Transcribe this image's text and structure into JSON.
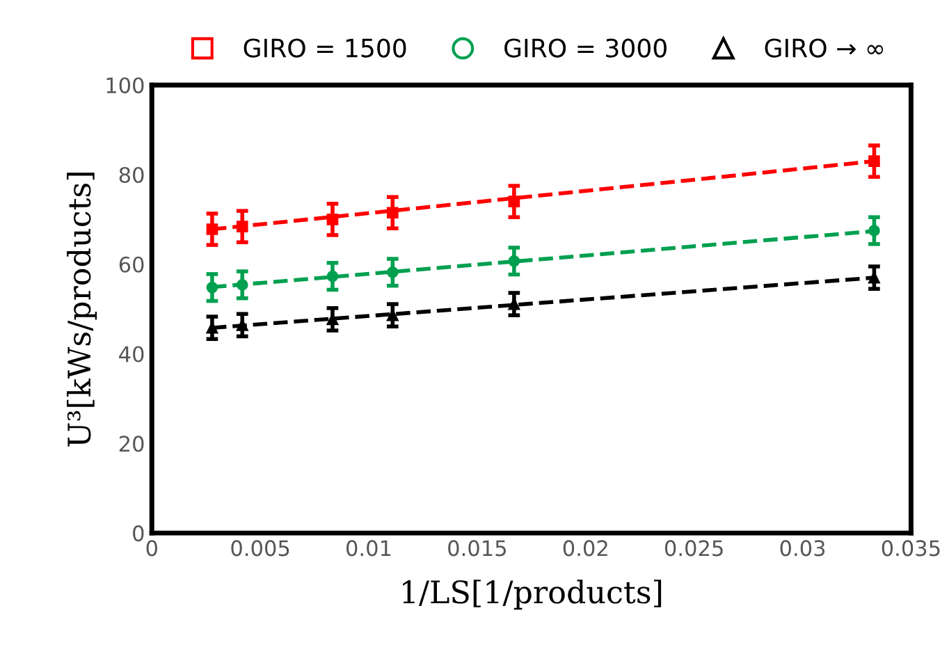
{
  "chart_data": {
    "type": "scatter",
    "xlabel": "1/LS[1/products]",
    "ylabel": "U³[kWs/products]",
    "xlim": [
      0,
      0.035
    ],
    "xticks": [
      0,
      0.005,
      0.01,
      0.015,
      0.02,
      0.025,
      0.03,
      0.035
    ],
    "ylim": [
      0,
      100
    ],
    "yticks": [
      0,
      20,
      40,
      60,
      80,
      100
    ],
    "grid": false,
    "legend": "top",
    "series": [
      {
        "name": "GIRO = 1500",
        "color": "#ff0000",
        "marker": "square",
        "x": [
          0.00278,
          0.00417,
          0.00833,
          0.0111,
          0.0167,
          0.0333
        ],
        "values": [
          67.8,
          68.4,
          70.0,
          71.5,
          74.0,
          83.0
        ],
        "errors": [
          3.5,
          3.5,
          3.5,
          3.5,
          3.5,
          3.5
        ]
      },
      {
        "name": "GIRO = 3000",
        "color": "#00a050",
        "marker": "circle",
        "x": [
          0.00278,
          0.00417,
          0.00833,
          0.0111,
          0.0167,
          0.0333
        ],
        "values": [
          54.8,
          55.4,
          57.3,
          58.2,
          60.7,
          67.5
        ],
        "errors": [
          3,
          3,
          3,
          3,
          3,
          3
        ]
      },
      {
        "name": "GIRO → ∞",
        "color": "#000000",
        "marker": "triangle",
        "x": [
          0.00278,
          0.00417,
          0.00833,
          0.0111,
          0.0167,
          0.0333
        ],
        "values": [
          45.8,
          46.4,
          47.7,
          48.6,
          51.1,
          57.0
        ],
        "errors": [
          2.5,
          2.5,
          2.5,
          2.5,
          2.5,
          2.5
        ]
      },
      {
        "type": "line",
        "line_style": "dashed",
        "color": "#ff0000",
        "x": [
          0.00278,
          0.0333
        ],
        "values": [
          67.8,
          83.0
        ]
      },
      {
        "type": "line",
        "line_style": "dashed",
        "color": "#00a050",
        "x": [
          0.00278,
          0.0333
        ],
        "values": [
          54.9,
          67.4
        ]
      },
      {
        "type": "line",
        "line_style": "dashed",
        "color": "#000000",
        "x": [
          0.00278,
          0.0333
        ],
        "values": [
          45.8,
          57.0
        ]
      }
    ]
  }
}
